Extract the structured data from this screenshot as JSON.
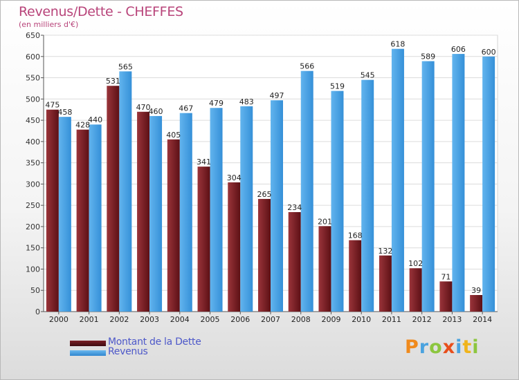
{
  "chart_data": {
    "type": "bar",
    "title": "Revenus/Dette - CHEFFES",
    "subtitle": "(en milliers d'€)",
    "xlabel": "",
    "ylabel": "",
    "ylim": [
      0,
      650
    ],
    "yticks": [
      0,
      50,
      100,
      150,
      200,
      250,
      300,
      350,
      400,
      450,
      500,
      550,
      600,
      650
    ],
    "grid": true,
    "legend_position": "bottom-left",
    "categories": [
      "2000",
      "2001",
      "2002",
      "2003",
      "2004",
      "2005",
      "2006",
      "2007",
      "2008",
      "2009",
      "2010",
      "2011",
      "2012",
      "2013",
      "2014"
    ],
    "series": [
      {
        "name": "Montant de la Dette",
        "color": "#7a1e24",
        "values": [
          475,
          428,
          531,
          470,
          405,
          341,
          304,
          265,
          234,
          201,
          168,
          132,
          102,
          71,
          39
        ]
      },
      {
        "name": "Revenus",
        "color": "#4ca2e4",
        "values": [
          458,
          440,
          565,
          460,
          467,
          479,
          483,
          497,
          566,
          519,
          545,
          618,
          589,
          606,
          600
        ]
      }
    ]
  },
  "logo": {
    "letters": [
      {
        "char": "P",
        "color": "#f08a1c"
      },
      {
        "char": "r",
        "color": "#4aa3df"
      },
      {
        "char": "o",
        "color": "#8cc63f"
      },
      {
        "char": "x",
        "color": "#e84e1b"
      },
      {
        "char": "i",
        "color": "#4aa3df"
      },
      {
        "char": "t",
        "color": "#f0b41c"
      },
      {
        "char": "i",
        "color": "#8cc63f"
      }
    ]
  }
}
